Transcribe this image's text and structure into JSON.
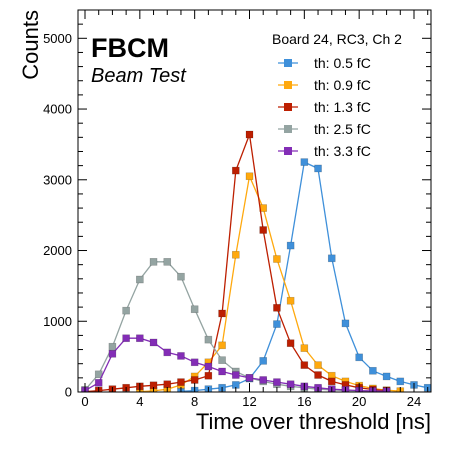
{
  "chart_data": {
    "type": "line",
    "annotation_main": "FBCM",
    "annotation_sub": "Beam Test",
    "legend_title": "Board 24, RC3, Ch 2",
    "legend_position": "top-right",
    "xlabel": "Time over threshold [ns]",
    "ylabel": "Counts",
    "xlim": [
      -1,
      26
    ],
    "ylim": [
      0,
      5400
    ],
    "xticks": [
      0,
      4,
      8,
      12,
      16,
      20,
      24
    ],
    "yticks": [
      0,
      1000,
      2000,
      3000,
      4000,
      5000
    ],
    "grid": false,
    "series": [
      {
        "name": "th: 0.5 fC",
        "color": "#3f90da",
        "points": [
          [
            7,
            10
          ],
          [
            8,
            20
          ],
          [
            9,
            40
          ],
          [
            10,
            60
          ],
          [
            11,
            100
          ],
          [
            12,
            190
          ],
          [
            13,
            440
          ],
          [
            14,
            960
          ],
          [
            15,
            2070
          ],
          [
            16,
            3250
          ],
          [
            17,
            3160
          ],
          [
            18,
            1890
          ],
          [
            19,
            970
          ],
          [
            20,
            490
          ],
          [
            21,
            300
          ],
          [
            22,
            220
          ],
          [
            23,
            150
          ],
          [
            24,
            100
          ],
          [
            25,
            60
          ],
          [
            26,
            30
          ],
          [
            27,
            15
          ]
        ]
      },
      {
        "name": "th: 0.9 fC",
        "color": "#ffa90e",
        "points": [
          [
            4,
            5
          ],
          [
            5,
            15
          ],
          [
            6,
            40
          ],
          [
            7,
            100
          ],
          [
            8,
            220
          ],
          [
            9,
            420
          ],
          [
            10,
            660
          ],
          [
            11,
            1940
          ],
          [
            12,
            3050
          ],
          [
            13,
            2600
          ],
          [
            14,
            1880
          ],
          [
            15,
            1290
          ],
          [
            16,
            620
          ],
          [
            17,
            380
          ],
          [
            18,
            230
          ],
          [
            19,
            150
          ],
          [
            20,
            90
          ],
          [
            21,
            50
          ],
          [
            22,
            25
          ],
          [
            23,
            12
          ]
        ]
      },
      {
        "name": "th: 1.3 fC",
        "color": "#bd1f01",
        "points": [
          [
            0,
            5
          ],
          [
            1,
            20
          ],
          [
            2,
            40
          ],
          [
            3,
            60
          ],
          [
            4,
            80
          ],
          [
            5,
            95
          ],
          [
            6,
            110
          ],
          [
            7,
            140
          ],
          [
            8,
            170
          ],
          [
            9,
            230
          ],
          [
            10,
            1110
          ],
          [
            11,
            3130
          ],
          [
            12,
            3640
          ],
          [
            13,
            2290
          ],
          [
            14,
            1190
          ],
          [
            15,
            690
          ],
          [
            16,
            380
          ],
          [
            17,
            240
          ],
          [
            18,
            150
          ],
          [
            19,
            100
          ],
          [
            20,
            60
          ],
          [
            21,
            35
          ],
          [
            22,
            20
          ]
        ]
      },
      {
        "name": "th: 2.5 fC",
        "color": "#94a4a2",
        "points": [
          [
            0,
            30
          ],
          [
            1,
            250
          ],
          [
            2,
            640
          ],
          [
            3,
            1150
          ],
          [
            4,
            1590
          ],
          [
            5,
            1840
          ],
          [
            6,
            1840
          ],
          [
            7,
            1630
          ],
          [
            8,
            1170
          ],
          [
            9,
            740
          ],
          [
            10,
            450
          ],
          [
            11,
            290
          ],
          [
            12,
            200
          ],
          [
            13,
            150
          ],
          [
            14,
            110
          ],
          [
            15,
            80
          ],
          [
            16,
            60
          ],
          [
            17,
            40
          ],
          [
            18,
            30
          ],
          [
            19,
            20
          ],
          [
            20,
            15
          ],
          [
            21,
            10
          ],
          [
            22,
            5
          ]
        ]
      },
      {
        "name": "th: 3.3 fC",
        "color": "#832db6",
        "points": [
          [
            0,
            20
          ],
          [
            1,
            130
          ],
          [
            2,
            540
          ],
          [
            3,
            760
          ],
          [
            4,
            760
          ],
          [
            5,
            700
          ],
          [
            6,
            560
          ],
          [
            7,
            510
          ],
          [
            8,
            420
          ],
          [
            9,
            360
          ],
          [
            10,
            290
          ],
          [
            11,
            240
          ],
          [
            12,
            200
          ],
          [
            13,
            170
          ],
          [
            14,
            140
          ],
          [
            15,
            110
          ],
          [
            16,
            80
          ],
          [
            17,
            60
          ],
          [
            18,
            40
          ],
          [
            19,
            30
          ],
          [
            20,
            20
          ],
          [
            21,
            15
          ],
          [
            22,
            10
          ]
        ]
      }
    ]
  }
}
